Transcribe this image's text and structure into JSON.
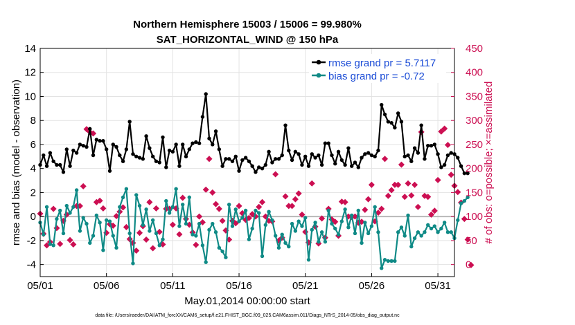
{
  "chart_data": {
    "type": "line",
    "title": "Northern Hemisphere 15003 / 15006 = 99.980%",
    "subtitle": "SAT_HORIZONTAL_WIND @ 150 hPa",
    "xlabel": "May.01,2014 00:00:00 start",
    "ylabel": "rmse and bias (model - observation)",
    "y2label": "# of obs: o=possible; ×=assimilated",
    "footnote": "data file: /Users/raeder/DAI/ATM_forcXX/CAM6_setup/f.e21.FHIST_BGC.f09_025.CAM6assim.011/Diags_NTrS_2014-05/obs_diag_output.nc",
    "x_tick_labels": [
      "05/01",
      "05/06",
      "05/11",
      "05/16",
      "05/21",
      "05/26",
      "05/31"
    ],
    "x_tick_days": [
      1,
      6,
      11,
      16,
      21,
      26,
      31
    ],
    "xlim": [
      1,
      32.25
    ],
    "ylim": [
      -5,
      14
    ],
    "y_ticks": [
      -4,
      -2,
      0,
      2,
      4,
      6,
      8,
      10,
      12,
      14
    ],
    "y2lim": [
      -25,
      450
    ],
    "y2_ticks": [
      0,
      50,
      100,
      150,
      200,
      250,
      300,
      350,
      400,
      450
    ],
    "grid": true,
    "legend_position": "top-right",
    "series": [
      {
        "name": "rmse grand pr = 5.7117",
        "color": "#000000",
        "axis": "left",
        "start_day": 1,
        "step_days": 0.25,
        "values": [
          4.3,
          5.1,
          4.2,
          5.3,
          4.6,
          4.3,
          4.3,
          3.7,
          5.6,
          4.2,
          5.5,
          5.3,
          6.0,
          5.9,
          5.8,
          7.3,
          5.1,
          6.4,
          6.3,
          6.3,
          5.6,
          3.8,
          6.0,
          5.8,
          5.1,
          4.6,
          5.6,
          7.9,
          5.2,
          5.0,
          4.9,
          4.8,
          6.7,
          5.7,
          5.0,
          4.6,
          4.5,
          6.6,
          4.1,
          5.5,
          5.4,
          6.0,
          4.2,
          6.0,
          5.0,
          5.6,
          6.1,
          6.2,
          6.1,
          8.3,
          10.2,
          6.5,
          6.0,
          7.1,
          5.6,
          4.2,
          4.8,
          4.8,
          4.6,
          5.0,
          3.8,
          4.7,
          4.9,
          4.6,
          4.2,
          3.7,
          4.1,
          4.0,
          4.3,
          5.4,
          4.5,
          4.8,
          4.8,
          5.1,
          7.6,
          5.5,
          4.7,
          5.4,
          5.2,
          4.3,
          5.0,
          4.2,
          5.2,
          4.9,
          5.1,
          4.3,
          6.1,
          6.1,
          5.1,
          4.4,
          5.4,
          4.7,
          4.3,
          5.7,
          4.2,
          4.5,
          4.1,
          4.9,
          5.2,
          5.3,
          5.1,
          5.0,
          5.5,
          9.3,
          8.5,
          7.9,
          7.8,
          7.4,
          8.6,
          7.9,
          5.0,
          5.1,
          4.6,
          5.7,
          5.3,
          7.6,
          4.8,
          5.9,
          5.9,
          6.0,
          5.2,
          4.1,
          4.3,
          5.1,
          5.3,
          5.2,
          4.9,
          4.2,
          3.6,
          3.6
        ]
      },
      {
        "name": "bias grand pr = -0.72",
        "color": "#0f8a86",
        "axis": "left",
        "start_day": 1,
        "step_days": 0.25,
        "values": [
          -0.5,
          -1.5,
          0.8,
          -2.3,
          -2.4,
          -0.2,
          0.5,
          -1.4,
          0.9,
          0.3,
          0.8,
          2.2,
          -1.2,
          -0.1,
          -0.6,
          -2.2,
          -1.6,
          0.1,
          -0.5,
          -2.8,
          -0.3,
          -0.4,
          -1.6,
          -2.6,
          0.8,
          1.6,
          2.3,
          -1.4,
          -3.9,
          1.8,
          0.9,
          -0.7,
          0.6,
          -1.2,
          -0.3,
          -1.4,
          -2.4,
          -1.9,
          1.3,
          0.3,
          0.8,
          2.3,
          -0.8,
          1.0,
          -0.6,
          1.6,
          -1.5,
          -1.6,
          -0.6,
          -2.4,
          -3.8,
          -1.1,
          -0.6,
          -1.3,
          -2.6,
          -2.9,
          -3.4,
          1.0,
          -0.8,
          0.6,
          -0.4,
          -0.1,
          0.5,
          -1.9,
          -1.0,
          0.5,
          0.3,
          -3.3,
          -0.7,
          0.4,
          -0.3,
          -1.6,
          -2.6,
          -1.5,
          -2.2,
          -2.5,
          -0.6,
          -1.2,
          -0.4,
          -0.8,
          -0.1,
          -3.6,
          -1.1,
          -0.5,
          -2.1,
          -1.3,
          -2.1,
          0.5,
          -0.6,
          -1.0,
          -1.5,
          -0.4,
          0.6,
          -0.9,
          0.1,
          -1.4,
          0.5,
          -2.2,
          -0.5,
          -1.4,
          -0.8,
          0.8,
          -1.3,
          -4.3,
          -3.6,
          -3.7,
          -3.7,
          -3.7,
          -1.3,
          -0.9,
          -1.6,
          0.1,
          -2.5,
          -1.8,
          -1.3,
          -1.6,
          -1.3,
          -0.7,
          -1.0,
          -0.8,
          -1.3,
          -1.0,
          -0.5,
          -1.3,
          -1.3,
          -1.8,
          -0.3,
          1.1,
          1.3,
          1.6
        ]
      },
      {
        "name": "# of obs (possible / assimilated)",
        "color": "#cc0f52",
        "axis": "right",
        "start_day": 1,
        "step_days": 0.25,
        "values": [
          106,
          64,
          40,
          47,
          116,
          76,
          43,
          91,
          104,
          51,
          42,
          122,
          122,
          163,
          282,
          276,
          273,
          130,
          133,
          117,
          66,
          84,
          81,
          101,
          110,
          119,
          78,
          53,
          45,
          29,
          66,
          80,
          52,
          130,
          34,
          117,
          68,
          42,
          116,
          116,
          83,
          117,
          63,
          139,
          95,
          83,
          67,
          41,
          100,
          88,
          156,
          220,
          150,
          126,
          116,
          91,
          71,
          52,
          91,
          86,
          122,
          107,
          93,
          97,
          105,
          100,
          120,
          130,
          100,
          91,
          90,
          188,
          50,
          56,
          142,
          122,
          122,
          136,
          148,
          104,
          68,
          46,
          169,
          79,
          44,
          96,
          56,
          116,
          94,
          89,
          60,
          131,
          130,
          100,
          99,
          100,
          87,
          89,
          114,
          136,
          166,
          90,
          108,
          116,
          220,
          143,
          155,
          166,
          166,
          208,
          141,
          169,
          144,
          166,
          120,
          276,
          143,
          141,
          104,
          112,
          176,
          277,
          283,
          249,
          187,
          164,
          151,
          129,
          95,
          52,
          -1
        ]
      }
    ]
  }
}
